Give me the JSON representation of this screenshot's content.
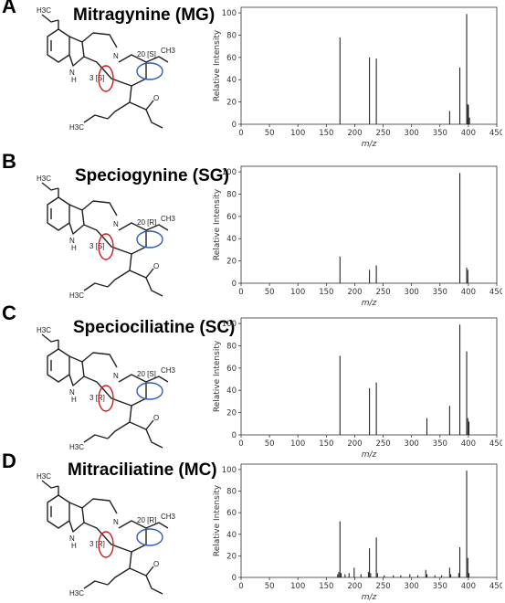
{
  "panels": [
    {
      "letter": "A",
      "name": "Mitragynine (MG)",
      "labels": {
        "top": "H3C",
        "c3": "3 [S]",
        "c20": "20 [S]",
        "ch3": "CH3",
        "nh": "N",
        "h": "H",
        "n": "N",
        "ome": "H3C",
        "ester": "O"
      }
    },
    {
      "letter": "B",
      "name": "Speciogynine (SG)",
      "labels": {
        "top": "H3C",
        "c3": "3 [S]",
        "c20": "20 [R]",
        "ch3": "CH3",
        "nh": "N",
        "h": "H",
        "n": "N",
        "ome": "H3C",
        "ester": "O"
      }
    },
    {
      "letter": "C",
      "name": "Speciociliatine (SC)",
      "labels": {
        "top": "H3C",
        "c3": "3 [R]",
        "c20": "20 [S]",
        "ch3": "CH3",
        "nh": "N",
        "h": "H",
        "n": "N",
        "ome": "H3C",
        "ester": "O"
      }
    },
    {
      "letter": "D",
      "name": "Mitraciliatine (MC)",
      "labels": {
        "top": "H3C",
        "c3": "3 [R]",
        "c20": "20 [R]",
        "ch3": "CH3",
        "nh": "N",
        "h": "H",
        "n": "N",
        "ome": "H3C",
        "ester": "O"
      }
    }
  ],
  "chart_data": [
    {
      "type": "bar",
      "xlabel": "m/z",
      "ylabel": "Relative Intensity",
      "xlim": [
        0,
        450
      ],
      "ylim": [
        0,
        105
      ],
      "xticks": [
        "0",
        "50",
        "100",
        "150",
        "200",
        "250",
        "300",
        "350",
        "400",
        "450"
      ],
      "yticks": [
        "0",
        "20",
        "40",
        "60",
        "80",
        "100"
      ],
      "peaks": [
        [
          174,
          78
        ],
        [
          226,
          60
        ],
        [
          238,
          59
        ],
        [
          367,
          12
        ],
        [
          385,
          51
        ],
        [
          397,
          99
        ],
        [
          399,
          18
        ],
        [
          400,
          17
        ],
        [
          402,
          6
        ]
      ]
    },
    {
      "type": "bar",
      "xlabel": "m/z",
      "ylabel": "Relative Intensity",
      "xlim": [
        0,
        450
      ],
      "ylim": [
        0,
        105
      ],
      "xticks": [
        "0",
        "50",
        "100",
        "150",
        "200",
        "250",
        "300",
        "350",
        "400",
        "450"
      ],
      "yticks": [
        "0",
        "20",
        "40",
        "60",
        "80",
        "100"
      ],
      "peaks": [
        [
          174,
          24
        ],
        [
          226,
          12
        ],
        [
          238,
          16
        ],
        [
          385,
          99
        ],
        [
          397,
          14
        ],
        [
          399,
          12
        ]
      ]
    },
    {
      "type": "bar",
      "xlabel": "m/z",
      "ylabel": "Relative Intensity",
      "xlim": [
        0,
        450
      ],
      "ylim": [
        0,
        105
      ],
      "xticks": [
        "0",
        "50",
        "100",
        "150",
        "200",
        "250",
        "300",
        "350",
        "400",
        "450"
      ],
      "yticks": [
        "0",
        "20",
        "40",
        "60",
        "80",
        "100"
      ],
      "peaks": [
        [
          174,
          71
        ],
        [
          226,
          42
        ],
        [
          238,
          47
        ],
        [
          327,
          15
        ],
        [
          367,
          26
        ],
        [
          385,
          99
        ],
        [
          397,
          75
        ],
        [
          399,
          15
        ],
        [
          401,
          12
        ]
      ]
    },
    {
      "type": "bar",
      "xlabel": "m/z",
      "ylabel": "Relative Intensity",
      "xlim": [
        0,
        450
      ],
      "ylim": [
        0,
        105
      ],
      "xticks": [
        "0",
        "50",
        "100",
        "150",
        "200",
        "250",
        "300",
        "350",
        "400",
        "450"
      ],
      "yticks": [
        "0",
        "20",
        "40",
        "60",
        "80",
        "100"
      ],
      "peaks": [
        [
          170,
          3
        ],
        [
          172,
          5
        ],
        [
          174,
          52
        ],
        [
          176,
          4
        ],
        [
          183,
          3
        ],
        [
          190,
          4
        ],
        [
          199,
          9
        ],
        [
          211,
          3
        ],
        [
          224,
          5
        ],
        [
          226,
          27
        ],
        [
          228,
          4
        ],
        [
          238,
          37
        ],
        [
          240,
          4
        ],
        [
          252,
          2
        ],
        [
          268,
          2
        ],
        [
          281,
          2
        ],
        [
          297,
          3
        ],
        [
          311,
          2
        ],
        [
          325,
          7
        ],
        [
          327,
          3
        ],
        [
          341,
          2
        ],
        [
          353,
          2
        ],
        [
          367,
          9
        ],
        [
          369,
          3
        ],
        [
          383,
          4
        ],
        [
          385,
          28
        ],
        [
          397,
          99
        ],
        [
          399,
          18
        ],
        [
          401,
          4
        ]
      ]
    }
  ]
}
